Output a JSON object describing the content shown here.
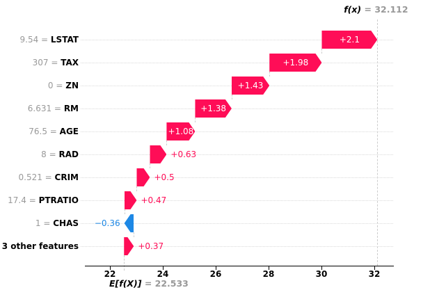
{
  "figure": {
    "fx_label": "f(x)",
    "fx_value_text": " = 32.112",
    "efx_label": "E[f(X)]",
    "efx_value_text": " = 22.533",
    "equals_separator": " = "
  },
  "chart_data": {
    "type": "bar",
    "subtype": "shap-waterfall",
    "title": "",
    "xlabel": "",
    "ylabel": "",
    "fx": 32.112,
    "base_value": 22.533,
    "x_ticks": [
      22,
      24,
      26,
      28,
      30,
      32
    ],
    "xlim": [
      21.05,
      32.74
    ],
    "grid": "dotted-horizontal-per-row",
    "colors": {
      "positive": "#ff0d57",
      "negative": "#1e88e5"
    },
    "rows": [
      {
        "name": "LSTAT",
        "feature_value": "9.54",
        "shap": 2.1,
        "label": "+2.1"
      },
      {
        "name": "TAX",
        "feature_value": "307",
        "shap": 1.98,
        "label": "+1.98"
      },
      {
        "name": "ZN",
        "feature_value": "0",
        "shap": 1.43,
        "label": "+1.43"
      },
      {
        "name": "RM",
        "feature_value": "6.631",
        "shap": 1.38,
        "label": "+1.38"
      },
      {
        "name": "AGE",
        "feature_value": "76.5",
        "shap": 1.08,
        "label": "+1.08"
      },
      {
        "name": "RAD",
        "feature_value": "8",
        "shap": 0.63,
        "label": "+0.63"
      },
      {
        "name": "CRIM",
        "feature_value": "0.521",
        "shap": 0.5,
        "label": "+0.5"
      },
      {
        "name": "PTRATIO",
        "feature_value": "17.4",
        "shap": 0.47,
        "label": "+0.47"
      },
      {
        "name": "CHAS",
        "feature_value": "1",
        "shap": -0.36,
        "label": "−0.36"
      },
      {
        "name": "3 other features",
        "feature_value": null,
        "shap": 0.37,
        "label": "+0.37"
      }
    ]
  }
}
